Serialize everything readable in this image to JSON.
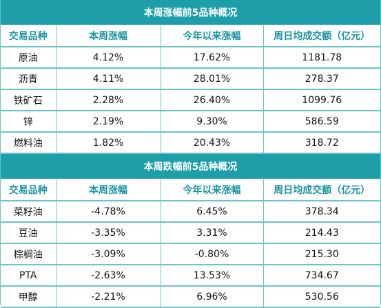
{
  "gainers": {
    "title": "本周涨幅前5品种概况",
    "headers": [
      "交易品种",
      "本周涨幅",
      "今年以来涨幅",
      "周日均成交额（亿元）"
    ],
    "rows": [
      [
        "原油",
        "4.12%",
        "17.62%",
        "1181.78"
      ],
      [
        "沥青",
        "4.11%",
        "28.01%",
        "278.37"
      ],
      [
        "铁矿石",
        "2.28%",
        "26.40%",
        "1099.76"
      ],
      [
        "锌",
        "2.19%",
        "9.30%",
        "586.59"
      ],
      [
        "燃料油",
        "1.82%",
        "20.43%",
        "318.72"
      ]
    ]
  },
  "losers": {
    "title": "本周跌幅前5品种概况",
    "headers": [
      "交易品种",
      "本周涨幅",
      "今年以来涨幅",
      "周日均成交额（亿元）"
    ],
    "rows": [
      [
        "菜籽油",
        "-4.78%",
        "6.45%",
        "378.34"
      ],
      [
        "豆油",
        "-3.35%",
        "3.31%",
        "214.43"
      ],
      [
        "棕榈油",
        "-3.09%",
        "-0.80%",
        "215.30"
      ],
      [
        "PTA",
        "-2.63%",
        "13.53%",
        "734.67"
      ],
      [
        "甲醇",
        "-2.21%",
        "6.96%",
        "530.56"
      ]
    ]
  },
  "colors": {
    "title_bg": "#1d9ea9",
    "header_text": "#1a93a0",
    "grid_line": "#6bc3cc"
  }
}
